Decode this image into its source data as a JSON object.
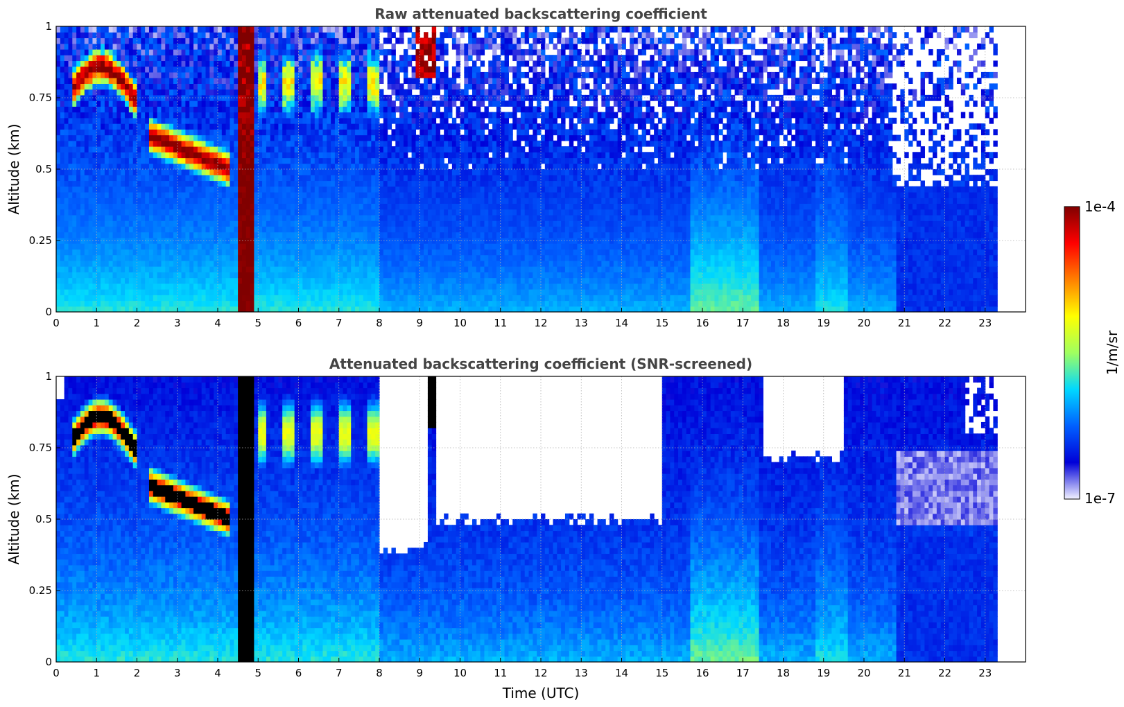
{
  "chart_data": [
    {
      "type": "heatmap",
      "title": "Raw attenuated backscattering coefficient",
      "xlabel": "",
      "ylabel": "Altitude (km)",
      "xlim": [
        0,
        24
      ],
      "ylim": [
        0,
        1
      ],
      "x_ticks": [
        0,
        1,
        2,
        3,
        4,
        5,
        6,
        7,
        8,
        9,
        10,
        11,
        12,
        13,
        14,
        15,
        16,
        17,
        18,
        19,
        20,
        21,
        22,
        23
      ],
      "y_ticks": [
        0,
        0.25,
        0.5,
        0.75,
        1
      ],
      "y_tick_labels": [
        "0",
        "0.25",
        "0.5",
        "0.75",
        "1"
      ],
      "data_x_end": 23.3,
      "grid": true,
      "color_scale": "log",
      "features": [
        {
          "x_range": [
            0.4,
            2.0
          ],
          "altitude_km": [
            0.72,
            0.93
          ],
          "level": "high"
        },
        {
          "x_range": [
            2.3,
            4.2
          ],
          "altitude_km": [
            0.5,
            0.7
          ],
          "level": "high"
        },
        {
          "x_range": [
            4.5,
            4.85
          ],
          "altitude_km": [
            0,
            1
          ],
          "level": "high"
        },
        {
          "x_range": [
            8.9,
            9.4
          ],
          "altitude_km": [
            0.83,
            1
          ],
          "level": "high"
        },
        {
          "x_range": [
            15.8,
            17.4
          ],
          "altitude_km": [
            0,
            0.45
          ],
          "level": "moderate"
        }
      ]
    },
    {
      "type": "heatmap",
      "title": "Attenuated backscattering coefficient (SNR-screened)",
      "xlabel": "Time (UTC)",
      "ylabel": "Altitude (km)",
      "xlim": [
        0,
        24
      ],
      "ylim": [
        0,
        1
      ],
      "x_ticks": [
        0,
        1,
        2,
        3,
        4,
        5,
        6,
        7,
        8,
        9,
        10,
        11,
        12,
        13,
        14,
        15,
        16,
        17,
        18,
        19,
        20,
        21,
        22,
        23
      ],
      "y_ticks": [
        0,
        0.25,
        0.5,
        0.75,
        1
      ],
      "y_tick_labels": [
        "0",
        "0.25",
        "0.5",
        "0.75",
        "1"
      ],
      "data_x_end": 23.3,
      "grid": true,
      "color_scale": "log",
      "screened_regions": [
        {
          "x_range": [
            8.0,
            9.2
          ],
          "altitude_km": [
            0.4,
            1
          ]
        },
        {
          "x_range": [
            9.4,
            15.0
          ],
          "altitude_km": [
            0.5,
            1
          ]
        },
        {
          "x_range": [
            17.5,
            19.5
          ],
          "altitude_km": [
            0.72,
            1
          ]
        }
      ]
    }
  ],
  "colorbar": {
    "label": "1/m/sr",
    "min_label": "1e-7",
    "max_label": "1e-4",
    "scale": "log",
    "colors": [
      "#f2f2ff",
      "#0000d8",
      "#0060ff",
      "#00d8ff",
      "#a0ff60",
      "#ffff00",
      "#ff8000",
      "#ff0000",
      "#800000"
    ]
  }
}
